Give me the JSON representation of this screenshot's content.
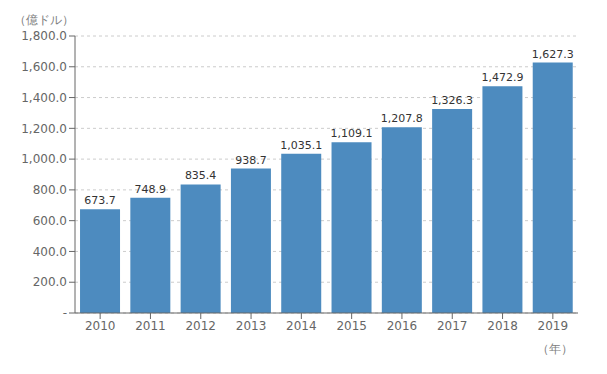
{
  "chart_data": {
    "type": "bar",
    "categories": [
      "2010",
      "2011",
      "2012",
      "2013",
      "2014",
      "2015",
      "2016",
      "2017",
      "2018",
      "2019"
    ],
    "values": [
      673.7,
      748.9,
      835.4,
      938.7,
      1035.1,
      1109.1,
      1207.8,
      1326.3,
      1472.9,
      1627.3
    ],
    "value_labels": [
      "673.7",
      "748.9",
      "835.4",
      "938.7",
      "1,035.1",
      "1,109.1",
      "1,207.8",
      "1,326.3",
      "1,472.9",
      "1,627.3"
    ],
    "data_labels": true,
    "color": "#4d8bbf",
    "ylim": [
      0,
      1800
    ],
    "yticks": [
      {
        "value": 0,
        "label": "-"
      },
      {
        "value": 200,
        "label": "200.0"
      },
      {
        "value": 400,
        "label": "400.0"
      },
      {
        "value": 600,
        "label": "600.0"
      },
      {
        "value": 800,
        "label": "800.0"
      },
      {
        "value": 1000,
        "label": "1,000.0"
      },
      {
        "value": 1200,
        "label": "1,200.0"
      },
      {
        "value": 1400,
        "label": "1,400.0"
      },
      {
        "value": 1600,
        "label": "1,600.0"
      },
      {
        "value": 1800,
        "label": "1,800.0"
      }
    ],
    "xlabel": "（年）",
    "ylabel": "（億ドル）",
    "grid": true
  }
}
